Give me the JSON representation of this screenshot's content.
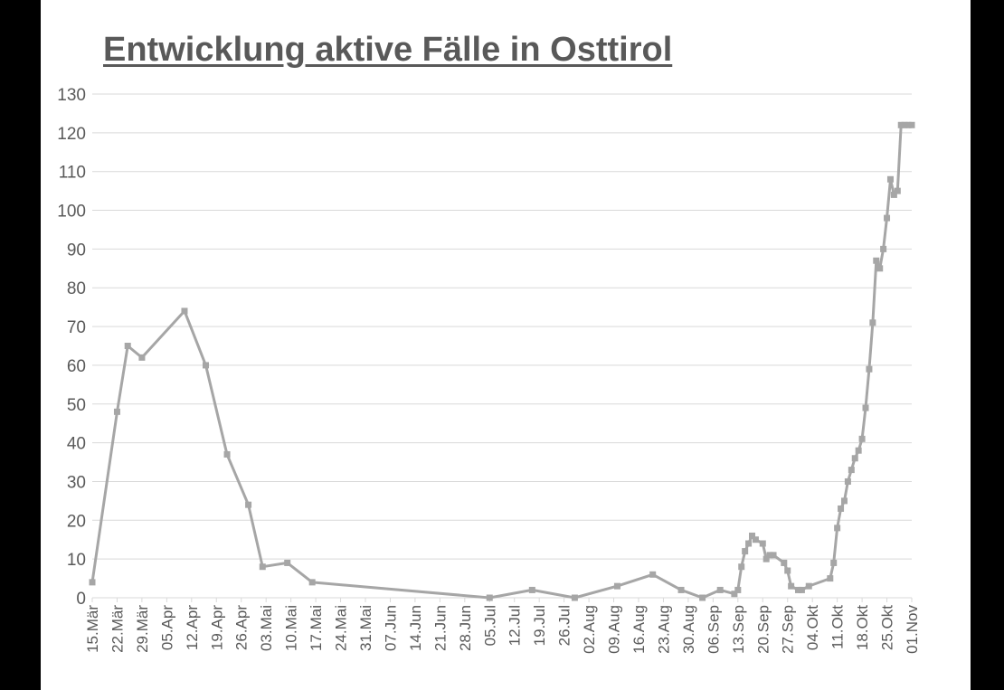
{
  "chart_data": {
    "type": "line",
    "title": "Entwicklung aktive Fälle in Osttirol",
    "xlabel": "",
    "ylabel": "",
    "ylim": [
      0,
      130
    ],
    "yticks": [
      0,
      10,
      20,
      30,
      40,
      50,
      60,
      70,
      80,
      90,
      100,
      110,
      120,
      130
    ],
    "xlim": [
      "2020-03-15",
      "2020-11-01"
    ],
    "grid": "horizontal",
    "line_color": "#a6a6a6",
    "text_color": "#595959",
    "grid_color": "#d9d9d9",
    "xtick_labels": [
      "15.Mär",
      "22.Mär",
      "29.Mär",
      "05.Apr",
      "12.Apr",
      "19.Apr",
      "26.Apr",
      "03.Mai",
      "10.Mai",
      "17.Mai",
      "24.Mai",
      "31.Mai",
      "07.Jun",
      "14.Jun",
      "21.Jun",
      "28.Jun",
      "05.Jul",
      "12.Jul",
      "19.Jul",
      "26.Jul",
      "02.Aug",
      "09.Aug",
      "16.Aug",
      "23.Aug",
      "30.Aug",
      "06.Sep",
      "13.Sep",
      "20.Sep",
      "27.Sep",
      "04.Okt",
      "11.Okt",
      "18.Okt",
      "25.Okt",
      "01.Nov"
    ],
    "series": [
      {
        "x": [
          "2020-03-15",
          "2020-03-22",
          "2020-03-25",
          "2020-03-29",
          "2020-04-10",
          "2020-04-16",
          "2020-04-22",
          "2020-04-28",
          "2020-05-02",
          "2020-05-09",
          "2020-05-16",
          "2020-07-05",
          "2020-07-17",
          "2020-07-29",
          "2020-08-10",
          "2020-08-20",
          "2020-08-28",
          "2020-09-03",
          "2020-09-08",
          "2020-09-12",
          "2020-09-13",
          "2020-09-14",
          "2020-09-15",
          "2020-09-16",
          "2020-09-17",
          "2020-09-18",
          "2020-09-20",
          "2020-09-21",
          "2020-09-22",
          "2020-09-23",
          "2020-09-26",
          "2020-09-27",
          "2020-09-28",
          "2020-09-30",
          "2020-10-01",
          "2020-10-03",
          "2020-10-09",
          "2020-10-10",
          "2020-10-11",
          "2020-10-12",
          "2020-10-13",
          "2020-10-14",
          "2020-10-15",
          "2020-10-16",
          "2020-10-17",
          "2020-10-18",
          "2020-10-19",
          "2020-10-20",
          "2020-10-21",
          "2020-10-22",
          "2020-10-23",
          "2020-10-24",
          "2020-10-25",
          "2020-10-26",
          "2020-10-27",
          "2020-10-28",
          "2020-10-29",
          "2020-10-30",
          "2020-10-31",
          "2020-11-01"
        ],
        "values": [
          4,
          48,
          65,
          62,
          74,
          60,
          37,
          24,
          8,
          9,
          4,
          0,
          2,
          0,
          3,
          6,
          2,
          0,
          2,
          1,
          2,
          8,
          12,
          14,
          16,
          15,
          14,
          10,
          11,
          11,
          9,
          7,
          3,
          2,
          2,
          3,
          5,
          9,
          18,
          23,
          25,
          30,
          33,
          36,
          38,
          41,
          49,
          59,
          71,
          87,
          85,
          90,
          98,
          108,
          104,
          105,
          122,
          122,
          122,
          122
        ]
      }
    ]
  }
}
